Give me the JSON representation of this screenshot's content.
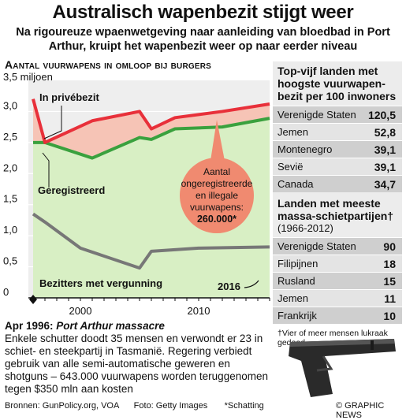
{
  "header": {
    "title": "Australisch wapenbezit stijgt weer",
    "subtitle": "Na rigoureuze wpaenwetgeving naar aanleiding van bloedbad in Port Arthur, kruipt het wapenbezit weer op naar eerder niveau"
  },
  "chart_data": {
    "type": "area",
    "title": "Aantal vuurwapens in omloop bij burgers",
    "ylabel": "",
    "xlabel": "",
    "unit_label": "3,5 miljoen",
    "ylim": [
      0,
      3.5
    ],
    "xlim": [
      1995.6,
      2016
    ],
    "yticks": [
      {
        "value": 0,
        "label": "0"
      },
      {
        "value": 0.5,
        "label": "0,5"
      },
      {
        "value": 1.0,
        "label": "1,0"
      },
      {
        "value": 1.5,
        "label": "1,5"
      },
      {
        "value": 2.0,
        "label": "2,0"
      },
      {
        "value": 2.5,
        "label": "2,5"
      },
      {
        "value": 3.0,
        "label": "3,0"
      }
    ],
    "xticks": [
      {
        "value": 2000,
        "label": "2000"
      },
      {
        "value": 2010,
        "label": "2010"
      }
    ],
    "series": [
      {
        "name": "In privébezit",
        "color": "#e8303a",
        "x": [
          1996,
          1997,
          2001,
          2005,
          2006,
          2008,
          2012,
          2016
        ],
        "values": [
          3.2,
          2.5,
          2.85,
          3.0,
          2.72,
          2.9,
          3.0,
          3.12
        ]
      },
      {
        "name": "Geregistreerd",
        "color": "#3aa13e",
        "x": [
          1996,
          1997,
          2001,
          2005,
          2006,
          2008,
          2012,
          2016
        ],
        "values": [
          2.5,
          2.5,
          2.25,
          2.58,
          2.55,
          2.72,
          2.75,
          2.89
        ]
      },
      {
        "name": "Bezitters met vergunning",
        "color": "#777777",
        "x": [
          1996,
          1997,
          2000,
          2005,
          2006,
          2010,
          2016
        ],
        "values": [
          1.35,
          1.22,
          0.8,
          0.48,
          0.75,
          0.8,
          0.82
        ]
      }
    ],
    "callout": {
      "text_lines": [
        "Aantal",
        "ongeregistreerde",
        "en illegale",
        "vuurwapens:",
        "260.000*"
      ],
      "year_label": "2016"
    },
    "annotation_year": "2016"
  },
  "sidebar": {
    "ranking1": {
      "title": "Top-vijf landen met hoogste vuurwapen-bezit per 100 inwoners",
      "rows": [
        {
          "label": "Verenigde Staten",
          "value": "120,5"
        },
        {
          "label": "Jemen",
          "value": "52,8"
        },
        {
          "label": "Montenegro",
          "value": "39,1"
        },
        {
          "label": "Sevië",
          "value": "39,1"
        },
        {
          "label": "Canada",
          "value": "34,7"
        }
      ]
    },
    "ranking2": {
      "title": "Landen met meeste massa-schietpartijen†",
      "period": "(1966-2012)",
      "rows": [
        {
          "label": "Verenigde Staten",
          "value": "90"
        },
        {
          "label": "Filipijnen",
          "value": "18"
        },
        {
          "label": "Rusland",
          "value": "15"
        },
        {
          "label": "Jemen",
          "value": "11"
        },
        {
          "label": "Frankrijk",
          "value": "10"
        }
      ],
      "footnote": "†Vier of meer mensen lukraak gedood"
    }
  },
  "event": {
    "date": "Apr 1996:",
    "name": "Port Arthur massacre",
    "text": "Enkele schutter doodt 35 mensen en verwondt er 23 in schiet- en steekpartij in Tasmanië. Regering verbiedt gebruik van alle semi-automatische geweren en shotguns – 643.000 vuurwapens worden teruggenomen tegen $350 mln aan kosten"
  },
  "footer": {
    "sources": "Bronnen: GunPolicy.org, VOA",
    "photo": "Foto: Getty Images",
    "estimate": "*Schatting",
    "credit": "© GRAPHIC NEWS"
  }
}
